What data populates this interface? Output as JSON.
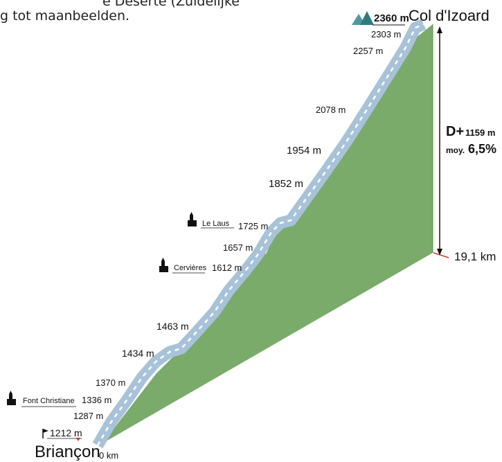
{
  "header_text": {
    "line1": "e Déserte (Zuidelijke",
    "line2": "g tot maanbeelden."
  },
  "summit": {
    "name": "Col d'Izoard",
    "elevation": "2360 m",
    "icon": "mountain-icon"
  },
  "start": {
    "name": "Briançon",
    "elevation": "1212 m",
    "km": "0 km",
    "icon": "flag-icon"
  },
  "stats": {
    "d_plus_label": "D+",
    "d_plus_value": "1159 m",
    "avg_label": "moy.",
    "avg_value": "6,5%",
    "distance": "19,1 km"
  },
  "altitudes": [
    "2303 m",
    "2257 m",
    "2078 m",
    "1954 m",
    "1852 m",
    "1725 m",
    "1657 m",
    "1612 m",
    "1463 m",
    "1434 m",
    "1370 m",
    "1336 m",
    "1287 m"
  ],
  "villages": [
    {
      "name": "Le Laus",
      "icon": "church-icon"
    },
    {
      "name": "Cervières",
      "icon": "church-icon"
    },
    {
      "name": "Font Christiane",
      "icon": "church-icon"
    }
  ],
  "colors": {
    "terrain": "#7aab6a",
    "road": "#a8c3d8",
    "dash": "#ffffff",
    "side": "#6d9c5f",
    "marker": "#c0392b"
  }
}
